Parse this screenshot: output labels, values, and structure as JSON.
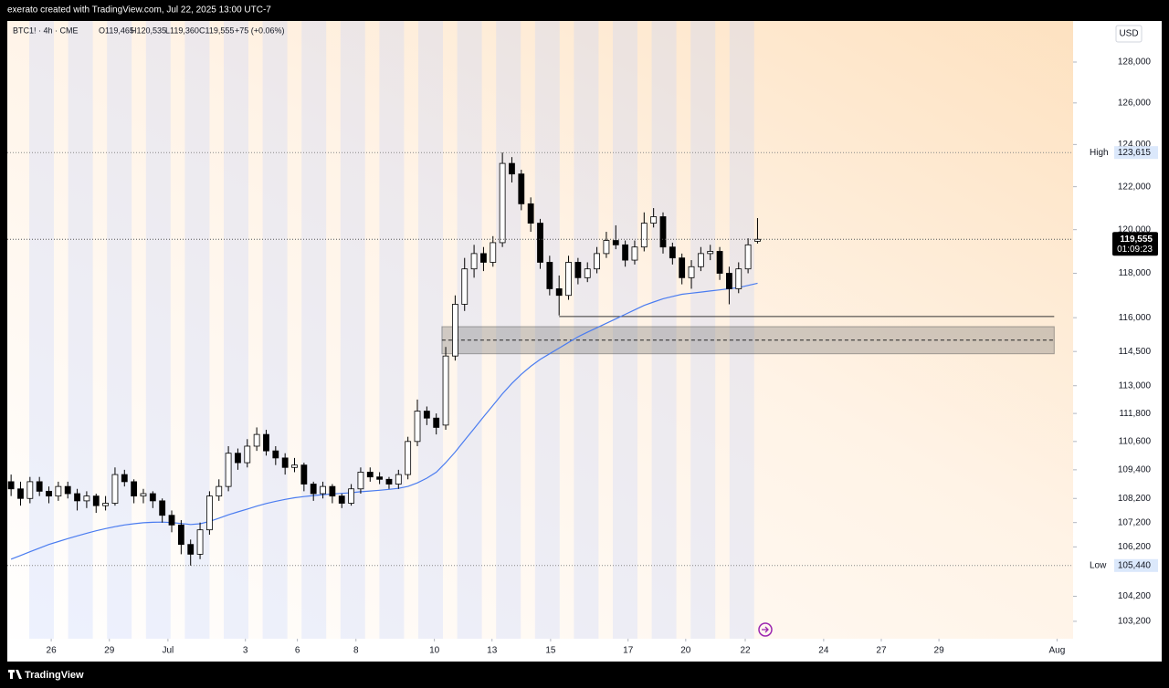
{
  "header": {
    "attribution": "exerato created with TradingView.com, Jul 22, 2025 13:00 UTC-7"
  },
  "footer": {
    "brand": "TradingView"
  },
  "chart_data": {
    "type": "candlestick",
    "legend": {
      "symbol": "BTC1! · 4h · CME",
      "open": "O119,465",
      "high": "H120,535",
      "low": "L119,360",
      "close": "C119,555",
      "change": "+75 (+0.06%)"
    },
    "currency": "USD",
    "log_scale": true,
    "up_color": "#ffffff",
    "down_color": "#000000",
    "ylim": [
      102510,
      130040
    ],
    "yticks": [
      {
        "value": 128000,
        "label": "128,000"
      },
      {
        "value": 126000,
        "label": "126,000"
      },
      {
        "value": 124000,
        "label": "124,000"
      },
      {
        "value": 122000,
        "label": "122,000"
      },
      {
        "value": 120000,
        "label": "120,000"
      },
      {
        "value": 118000,
        "label": "118,000"
      },
      {
        "value": 116000,
        "label": "116,000"
      },
      {
        "value": 114500,
        "label": "114,500"
      },
      {
        "value": 113000,
        "label": "113,000"
      },
      {
        "value": 111800,
        "label": "111,800"
      },
      {
        "value": 110600,
        "label": "110,600"
      },
      {
        "value": 109400,
        "label": "109,400"
      },
      {
        "value": 108200,
        "label": "108,200"
      },
      {
        "value": 107200,
        "label": "107,200"
      },
      {
        "value": 106200,
        "label": "106,200"
      },
      {
        "value": 104200,
        "label": "104,200"
      },
      {
        "value": 103200,
        "label": "103,200"
      }
    ],
    "xlim": [
      -0.4,
      112.4
    ],
    "xticks": [
      {
        "value": 4.25,
        "label": "26"
      },
      {
        "value": 10.4,
        "label": "29"
      },
      {
        "value": 16.6,
        "label": "Jul"
      },
      {
        "value": 24.8,
        "label": "3"
      },
      {
        "value": 30.3,
        "label": "6"
      },
      {
        "value": 36.5,
        "label": "8"
      },
      {
        "value": 44.8,
        "label": "10"
      },
      {
        "value": 50.9,
        "label": "13"
      },
      {
        "value": 57.1,
        "label": "15"
      },
      {
        "value": 65.3,
        "label": "17"
      },
      {
        "value": 71.4,
        "label": "20"
      },
      {
        "value": 77.7,
        "label": "22"
      },
      {
        "value": 86,
        "label": "24"
      },
      {
        "value": 92.1,
        "label": "27"
      },
      {
        "value": 98.2,
        "label": "29"
      },
      {
        "value": 110.7,
        "label": "Aug"
      }
    ],
    "open": [
      108900,
      108600,
      108200,
      108900,
      108500,
      108300,
      108700,
      108400,
      108100,
      108300,
      107900,
      108000,
      109200,
      108900,
      108300,
      108400,
      108100,
      107500,
      107100,
      106300,
      105900,
      106900,
      108300,
      108700,
      110100,
      109700,
      110400,
      110900,
      110200,
      109900,
      109500,
      109600,
      108800,
      108400,
      108700,
      108300,
      108000,
      108600,
      109300,
      109100,
      109000,
      108800,
      109200,
      110600,
      111900,
      111600,
      111300,
      114300,
      116600,
      118200,
      118900,
      118500,
      119400,
      123100,
      122600,
      121200,
      120300,
      118500,
      117300,
      117000,
      118500,
      117800,
      118200,
      118900,
      119500,
      119300,
      118600,
      119200,
      120300,
      120600,
      119200,
      118700,
      117800,
      118300,
      118900,
      119000,
      118000,
      117300,
      118200,
      119465
    ],
    "high": [
      109200,
      108900,
      109100,
      109100,
      108700,
      108900,
      108900,
      108600,
      108500,
      108400,
      108300,
      109500,
      109400,
      109000,
      108600,
      108500,
      108200,
      107700,
      107300,
      106500,
      107200,
      108500,
      109000,
      110400,
      110300,
      110700,
      111200,
      111100,
      110400,
      110100,
      109900,
      109700,
      108900,
      108900,
      108800,
      108400,
      108800,
      109500,
      109500,
      109300,
      109100,
      109400,
      110800,
      112400,
      112100,
      111800,
      114700,
      117000,
      118700,
      119300,
      119200,
      119700,
      123615,
      123400,
      122800,
      121500,
      120500,
      118800,
      117900,
      118800,
      118700,
      118500,
      119200,
      119900,
      120200,
      119500,
      119500,
      120800,
      121000,
      120800,
      119400,
      118900,
      118600,
      119200,
      119300,
      119200,
      118300,
      118500,
      119600,
      120535
    ],
    "low": [
      108300,
      107900,
      108000,
      108300,
      108000,
      108100,
      108200,
      107700,
      107800,
      107600,
      107700,
      107900,
      108700,
      108000,
      108000,
      107800,
      107200,
      106800,
      105900,
      105440,
      105700,
      106700,
      108100,
      108500,
      109400,
      109500,
      110200,
      110000,
      109600,
      109200,
      109300,
      108500,
      108100,
      108200,
      108000,
      107800,
      107900,
      108400,
      108900,
      108800,
      108600,
      108600,
      109000,
      110400,
      111300,
      110900,
      111100,
      114100,
      116300,
      117800,
      118100,
      118300,
      119200,
      122200,
      120900,
      119900,
      118200,
      117000,
      116100,
      116800,
      117500,
      117600,
      118000,
      118700,
      119100,
      118300,
      118400,
      119000,
      120100,
      118900,
      118400,
      117500,
      117300,
      118100,
      118600,
      117700,
      116600,
      117100,
      118000,
      119360
    ],
    "close": [
      108600,
      108200,
      108900,
      108500,
      108300,
      108700,
      108400,
      108100,
      108300,
      107900,
      108000,
      109200,
      108900,
      108300,
      108400,
      108100,
      107500,
      107100,
      106300,
      105900,
      106900,
      108300,
      108700,
      110100,
      109700,
      110400,
      110900,
      110200,
      109900,
      109500,
      109600,
      108800,
      108400,
      108700,
      108300,
      108000,
      108600,
      109300,
      109100,
      109000,
      108800,
      109200,
      110600,
      111900,
      111600,
      111200,
      114300,
      116600,
      118200,
      118900,
      118500,
      119400,
      123100,
      122600,
      121200,
      120300,
      118500,
      117300,
      117000,
      118500,
      117800,
      118200,
      118900,
      119500,
      119300,
      118600,
      119200,
      120300,
      120600,
      119200,
      118700,
      117800,
      118300,
      118900,
      119000,
      118000,
      117300,
      118200,
      119300,
      119555
    ],
    "ma": {
      "color": "#4a7cf0",
      "values": [
        105700,
        105850,
        106000,
        106150,
        106300,
        106420,
        106540,
        106650,
        106760,
        106860,
        106950,
        107030,
        107100,
        107150,
        107190,
        107210,
        107220,
        107200,
        107160,
        107120,
        107150,
        107250,
        107380,
        107520,
        107640,
        107760,
        107880,
        107990,
        108080,
        108160,
        108230,
        108280,
        108320,
        108360,
        108390,
        108410,
        108440,
        108480,
        108510,
        108540,
        108580,
        108620,
        108700,
        108850,
        109050,
        109300,
        109700,
        110150,
        110650,
        111150,
        111650,
        112150,
        112650,
        113100,
        113500,
        113850,
        114150,
        114400,
        114650,
        114900,
        115150,
        115350,
        115550,
        115750,
        115950,
        116150,
        116350,
        116550,
        116700,
        116850,
        116950,
        117050,
        117100,
        117150,
        117200,
        117250,
        117300,
        117350,
        117450,
        117550
      ]
    },
    "high_marker": {
      "label": "High",
      "value": 123615,
      "value_label": "123,615"
    },
    "low_marker": {
      "label": "Low",
      "value": 105440,
      "value_label": "105,440"
    },
    "last_price": {
      "value": 119555,
      "value_label": "119,555",
      "countdown": "01:09:23"
    },
    "levels": [
      {
        "value": 116050,
        "from": 58,
        "to": 110.4
      }
    ],
    "zones": [
      {
        "low": 114400,
        "high": 115600,
        "mid": 115000,
        "from": 45.6,
        "to": 110.4
      }
    ]
  }
}
